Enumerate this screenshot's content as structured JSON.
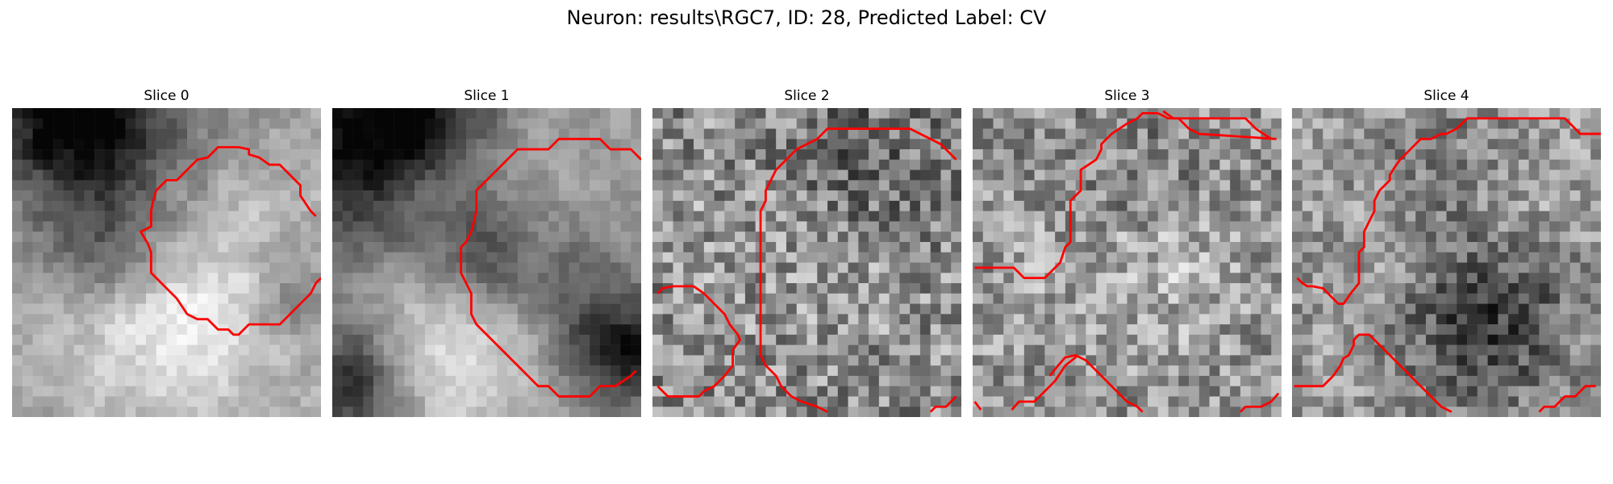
{
  "figure": {
    "title": "Neuron: results\\RGC7, ID: 28, Predicted Label: CV"
  },
  "panels": [
    {
      "title": "Slice 0",
      "contour_color": "#ff0000",
      "colormap": "gray"
    },
    {
      "title": "Slice 1",
      "contour_color": "#ff0000",
      "colormap": "gray"
    },
    {
      "title": "Slice 2",
      "contour_color": "#ff0000",
      "colormap": "gray"
    },
    {
      "title": "Slice 3",
      "contour_color": "#ff0000",
      "colormap": "gray"
    },
    {
      "title": "Slice 4",
      "contour_color": "#ff0000",
      "colormap": "gray"
    }
  ]
}
